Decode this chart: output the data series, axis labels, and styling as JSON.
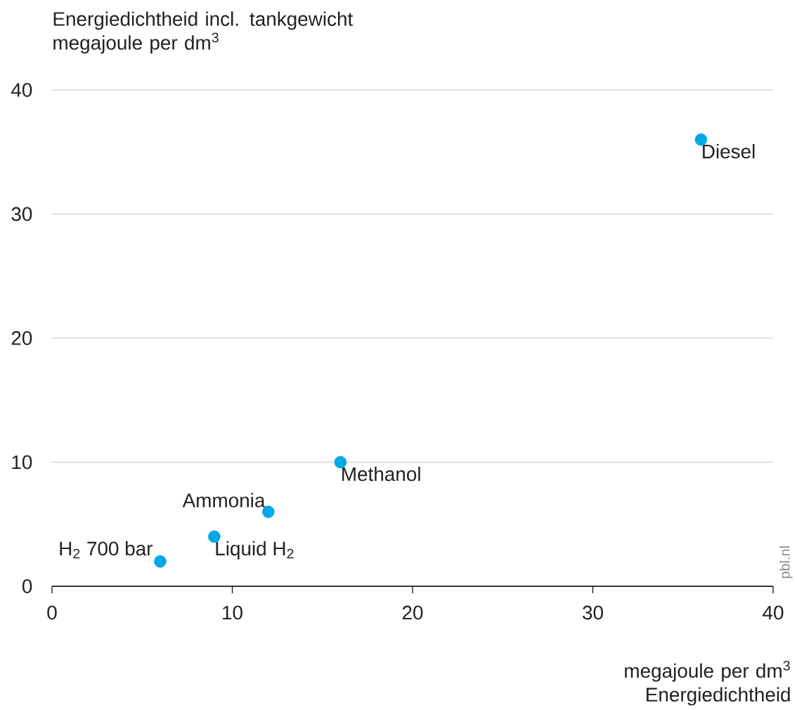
{
  "chart_data": {
    "type": "scatter",
    "xlabel": "megajoule per dm$^{3}$ Energiedichtheid",
    "ylabel": "Energiedichtheid incl. tankgewicht megajoule per dm$^{3}$",
    "x": [
      36,
      16,
      12,
      9,
      6
    ],
    "series": [
      {
        "color": "#00a8e6",
        "values": [
          36,
          10,
          6,
          4,
          2
        ]
      }
    ],
    "xlim": [
      0,
      40
    ],
    "ylim": [
      0,
      40
    ],
    "xticks": [
      0,
      10,
      20,
      30,
      40
    ],
    "yticks": [
      0,
      10,
      20,
      30,
      40
    ],
    "grid": "y",
    "marker": "circle",
    "annotations": [
      {
        "text": "Diesel",
        "x": 36,
        "y": 36
      },
      {
        "text": "Methanol",
        "x": 16,
        "y": 10
      },
      {
        "text": "Ammonia",
        "x": 12,
        "y": 6
      },
      {
        "text": "Liquid H$_{2}$",
        "x": 9,
        "y": 4
      },
      {
        "text": "H$_{2}$ 700 bar",
        "x": 6,
        "y": 2
      },
      "pbl.nl"
    ]
  }
}
